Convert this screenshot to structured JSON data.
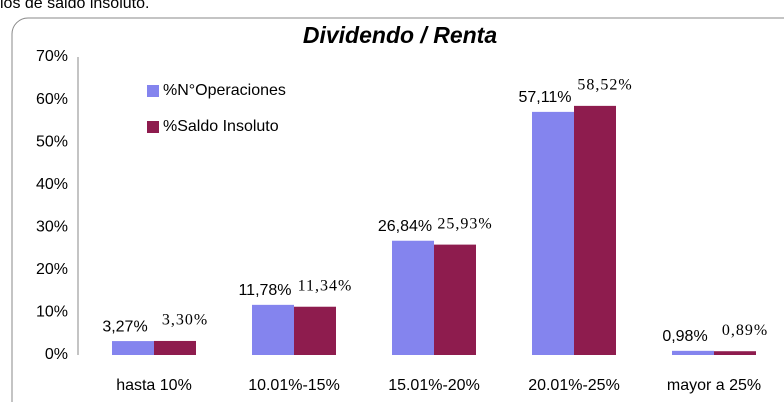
{
  "caption_fragment": "ios de saldo insoluto.",
  "chart_data": {
    "type": "bar",
    "title": "Dividendo / Renta",
    "categories": [
      "hasta 10%",
      "10.01%-15%",
      "15.01%-20%",
      "20.01%-25%",
      "mayor a 25%"
    ],
    "series": [
      {
        "name": "%N°Operaciones",
        "color": "#8484ee",
        "values": [
          3.27,
          11.78,
          26.84,
          57.11,
          0.98
        ],
        "value_labels": [
          "3,27%",
          "11,78%",
          "26,84%",
          "57,11%",
          "0,98%"
        ]
      },
      {
        "name": "%Saldo Insoluto",
        "color": "#8e1c4e",
        "values": [
          3.3,
          11.34,
          25.93,
          58.52,
          0.89
        ],
        "value_labels": [
          "3,30%",
          "11,34%",
          "25,93%",
          "58,52%",
          "0,89%"
        ]
      }
    ],
    "ylim": [
      0,
      70
    ],
    "yticks": [
      {
        "value": 0,
        "label": "0%"
      },
      {
        "value": 10,
        "label": "10%"
      },
      {
        "value": 20,
        "label": "20%"
      },
      {
        "value": 30,
        "label": "30%"
      },
      {
        "value": 40,
        "label": "40%"
      },
      {
        "value": 50,
        "label": "50%"
      },
      {
        "value": 60,
        "label": "60%"
      },
      {
        "value": 70,
        "label": "70%"
      }
    ],
    "legend": "top-left"
  }
}
